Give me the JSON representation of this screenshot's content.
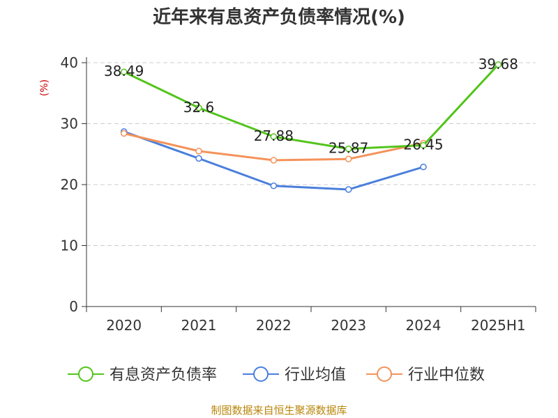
{
  "chart_data": {
    "type": "line",
    "title": "近年来有息资产负债率情况(%)",
    "ylabel": "(%)",
    "categories": [
      "2020",
      "2021",
      "2022",
      "2023",
      "2024",
      "2025H1"
    ],
    "ylim": [
      0,
      40
    ],
    "yticks": [
      0,
      10,
      20,
      30,
      40
    ],
    "grid": true,
    "legend_position": "bottom",
    "series": [
      {
        "name": "有息资产负债率",
        "color": "#52c41a",
        "values": [
          38.49,
          32.6,
          27.88,
          25.87,
          26.45,
          39.68
        ],
        "labels": [
          "38.49",
          "32.6",
          "27.88",
          "25.87",
          "26.45",
          "39.68"
        ]
      },
      {
        "name": "行业均值",
        "color": "#4a7fdc",
        "values": [
          28.7,
          24.3,
          19.8,
          19.2,
          22.9,
          null
        ]
      },
      {
        "name": "行业中位数",
        "color": "#f4925a",
        "values": [
          28.4,
          25.5,
          24.0,
          24.2,
          26.8,
          null
        ]
      }
    ],
    "source": "制图数据来自恒生聚源数据库"
  }
}
